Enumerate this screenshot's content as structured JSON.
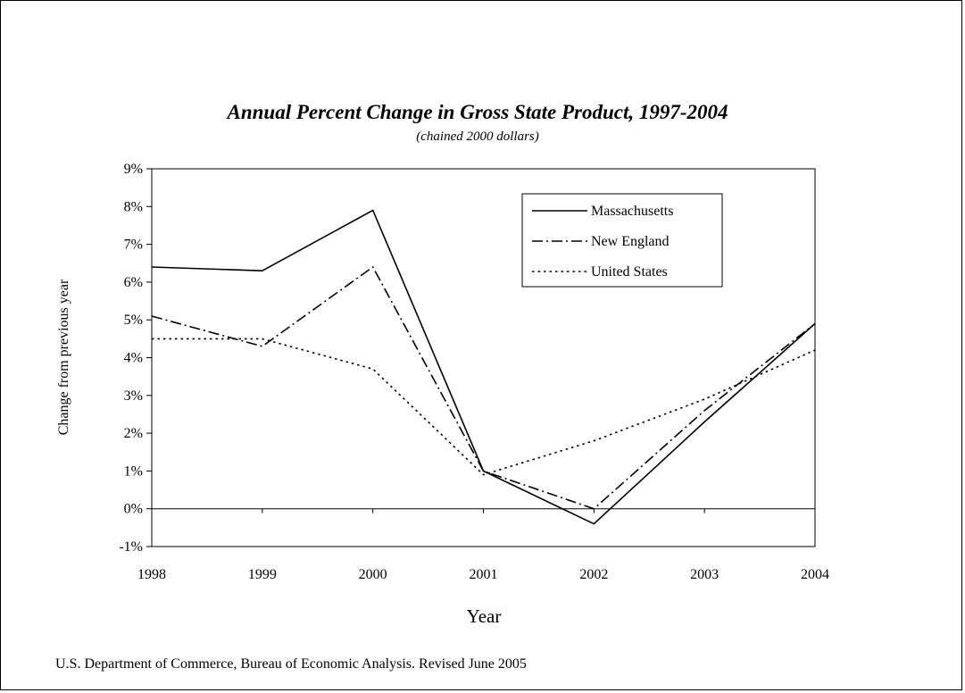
{
  "chart_data": {
    "type": "line",
    "title": "Annual Percent Change in Gross State Product, 1997-2004",
    "subtitle": "(chained 2000 dollars)",
    "xlabel": "Year",
    "ylabel": "Change from previous year",
    "x": [
      1998,
      1999,
      2000,
      2001,
      2002,
      2003,
      2004
    ],
    "x_tick_labels": [
      "1998",
      "1999",
      "2000",
      "2001",
      "2002",
      "2003",
      "2004"
    ],
    "ylim": [
      -1,
      9
    ],
    "y_ticks": [
      -1,
      0,
      1,
      2,
      3,
      4,
      5,
      6,
      7,
      8,
      9
    ],
    "y_tick_labels": [
      "-1%",
      "0%",
      "1%",
      "2%",
      "3%",
      "4%",
      "5%",
      "6%",
      "7%",
      "8%",
      "9%"
    ],
    "grid": false,
    "legend_position": "top-right",
    "series": [
      {
        "name": "Massachusetts",
        "style": "solid",
        "color": "#000000",
        "values": [
          6.4,
          6.3,
          7.9,
          1.0,
          -0.4,
          2.3,
          4.9
        ]
      },
      {
        "name": "New England",
        "style": "dash-dot",
        "color": "#000000",
        "values": [
          5.1,
          4.3,
          6.4,
          1.0,
          0.0,
          2.6,
          4.9
        ]
      },
      {
        "name": "United States",
        "style": "dotted",
        "color": "#000000",
        "values": [
          4.5,
          4.5,
          3.7,
          0.9,
          1.8,
          2.9,
          4.2
        ]
      }
    ]
  },
  "source_note": "U.S. Department of Commerce, Bureau of Economic Analysis.  Revised June 2005"
}
